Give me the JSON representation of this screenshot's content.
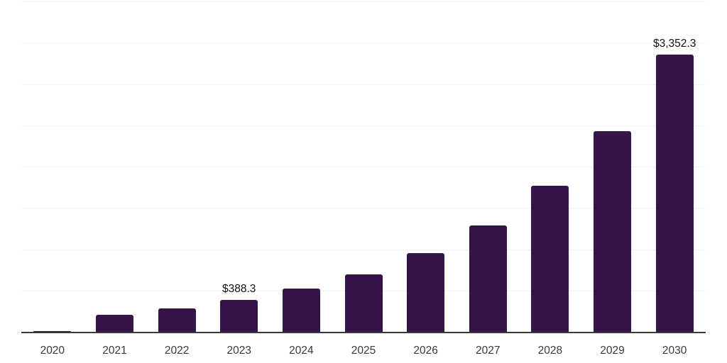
{
  "chart_meta": {
    "background_color": "#ffffff",
    "bar_color": "#351449",
    "grid_color": "#f2f2f2",
    "axis_color": "#3a3a3a",
    "tick_label_color": "#3a3a3a",
    "data_label_color": "#111111"
  },
  "chart_data": {
    "type": "bar",
    "title": "",
    "xlabel": "",
    "ylabel": "",
    "categories": [
      "2020",
      "2021",
      "2022",
      "2023",
      "2024",
      "2025",
      "2026",
      "2027",
      "2028",
      "2029",
      "2030"
    ],
    "values": [
      8,
      210,
      285,
      388.3,
      525,
      695,
      950,
      1285,
      1765,
      2430,
      3352.3
    ],
    "labeled_points": [
      {
        "index": 3,
        "text": "$388.3"
      },
      {
        "index": 10,
        "text": "$3,352.3"
      }
    ],
    "ylim": [
      0,
      4000
    ],
    "grid_step": 500,
    "grid": true,
    "legend": false,
    "y_axis_ticks_visible": false,
    "notes": "Only 2023 and 2030 bars carry data labels; other values estimated from gridlines (500 units per line)."
  }
}
